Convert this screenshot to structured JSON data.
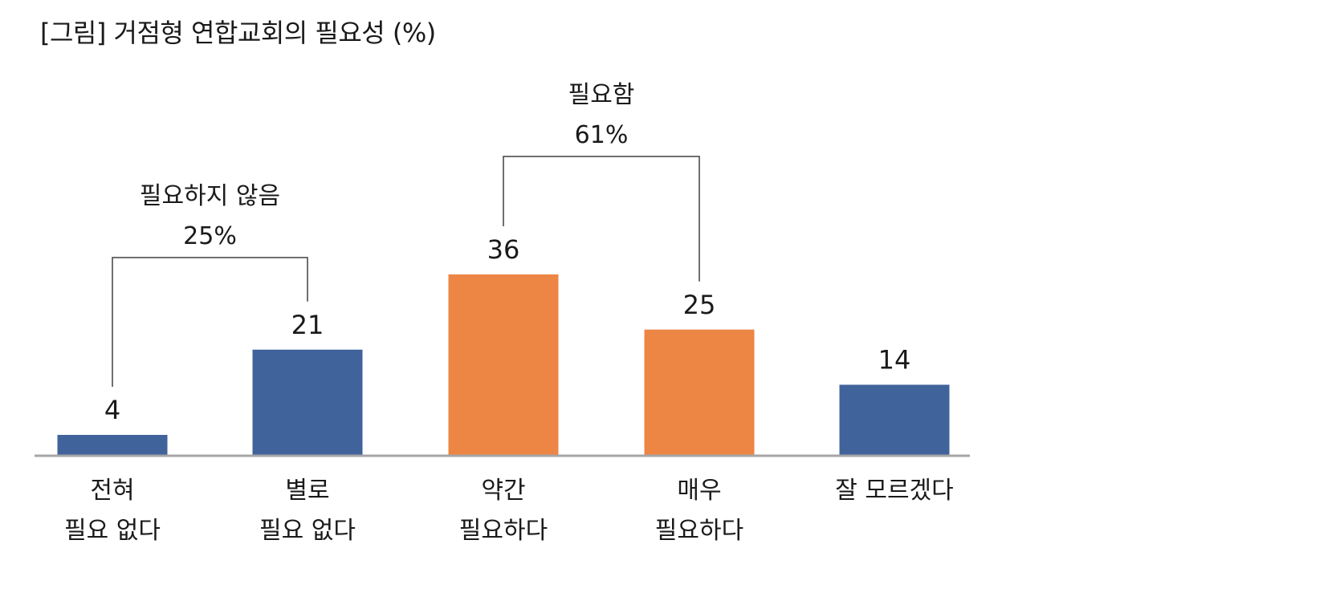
{
  "chart_data": {
    "type": "bar",
    "title": "[그림] 거점형 연합교회의 필요성 (%)",
    "categories": [
      [
        "전혀",
        "필요 없다"
      ],
      [
        "별로",
        "필요 없다"
      ],
      [
        "약간",
        "필요하다"
      ],
      [
        "매우",
        "필요하다"
      ],
      [
        "잘 모르겠다"
      ]
    ],
    "values": [
      4,
      21,
      36,
      25,
      14
    ],
    "colors": [
      "#41639b",
      "#41639b",
      "#ed8545",
      "#ed8545",
      "#41639b"
    ],
    "ylim": [
      0,
      40
    ],
    "axis_color": "#a6a6a6",
    "groups": [
      {
        "label": "필요하지 않음",
        "value": "25%",
        "from": 0,
        "to": 1
      },
      {
        "label": "필요함",
        "value": "61%",
        "from": 2,
        "to": 3
      }
    ]
  }
}
